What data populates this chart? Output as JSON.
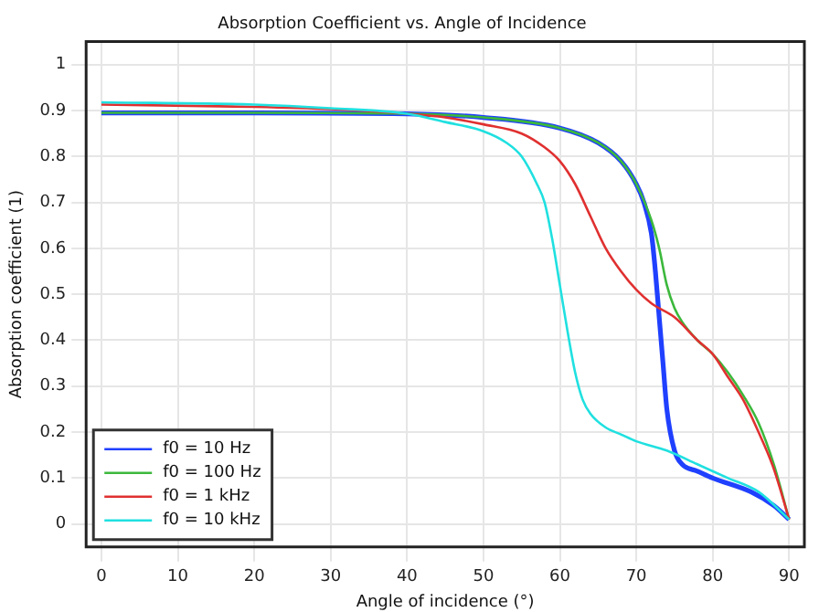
{
  "chart_data": {
    "type": "line",
    "title": "Absorption Coefficient vs. Angle of Incidence",
    "xlabel": "Angle of incidence (°)",
    "ylabel": "Absorption coefficient (1)",
    "xlim": [
      -2,
      92
    ],
    "xticks": [
      0,
      10,
      20,
      30,
      40,
      50,
      60,
      70,
      80,
      90
    ],
    "ylim": [
      -0.05,
      1.05
    ],
    "yticks": [
      0,
      0.1,
      0.2,
      0.3,
      0.4,
      0.5,
      0.6,
      0.7,
      0.8,
      0.9,
      1
    ],
    "grid": true,
    "legend": "bottom left",
    "marker": "none",
    "line_style": "solid",
    "series": [
      {
        "name": "f0 = 10 Hz",
        "color": "#2040ff",
        "x": [
          0,
          20,
          40,
          50,
          60,
          65,
          68,
          70,
          71,
          72,
          72.5,
          73,
          73.5,
          74,
          75,
          76,
          78,
          80,
          85,
          88,
          90
        ],
        "values": [
          0.895,
          0.895,
          0.893,
          0.885,
          0.862,
          0.83,
          0.79,
          0.74,
          0.7,
          0.63,
          0.55,
          0.45,
          0.35,
          0.25,
          0.16,
          0.13,
          0.115,
          0.1,
          0.07,
          0.04,
          0.01
        ]
      },
      {
        "name": "f0 = 100 Hz",
        "color": "#3cb83c",
        "x": [
          0,
          20,
          40,
          50,
          60,
          65,
          68,
          70,
          72,
          73,
          74,
          75,
          76,
          78,
          80,
          82,
          84,
          86,
          88,
          90
        ],
        "values": [
          0.895,
          0.895,
          0.893,
          0.885,
          0.862,
          0.83,
          0.79,
          0.74,
          0.66,
          0.6,
          0.52,
          0.47,
          0.44,
          0.4,
          0.37,
          0.33,
          0.28,
          0.22,
          0.13,
          0.01
        ]
      },
      {
        "name": "f0 = 1 kHz",
        "color": "#e03030",
        "x": [
          0,
          20,
          30,
          40,
          45,
          50,
          55,
          58,
          60,
          62,
          64,
          66,
          68,
          70,
          72,
          75,
          78,
          80,
          82,
          84,
          86,
          88,
          90
        ],
        "values": [
          0.913,
          0.908,
          0.903,
          0.893,
          0.885,
          0.87,
          0.85,
          0.82,
          0.79,
          0.74,
          0.67,
          0.6,
          0.55,
          0.51,
          0.48,
          0.45,
          0.4,
          0.37,
          0.32,
          0.27,
          0.2,
          0.12,
          0.01
        ]
      },
      {
        "name": "f0 = 10 kHz",
        "color": "#20e0e0",
        "x": [
          0,
          20,
          30,
          40,
          45,
          50,
          53,
          55,
          57,
          58,
          59,
          60,
          61,
          62,
          63,
          64,
          66,
          68,
          70,
          74,
          78,
          82,
          86,
          90
        ],
        "values": [
          0.918,
          0.913,
          0.905,
          0.893,
          0.875,
          0.855,
          0.83,
          0.8,
          0.74,
          0.7,
          0.62,
          0.52,
          0.42,
          0.33,
          0.27,
          0.24,
          0.21,
          0.195,
          0.18,
          0.16,
          0.13,
          0.1,
          0.07,
          0.01
        ]
      }
    ]
  }
}
